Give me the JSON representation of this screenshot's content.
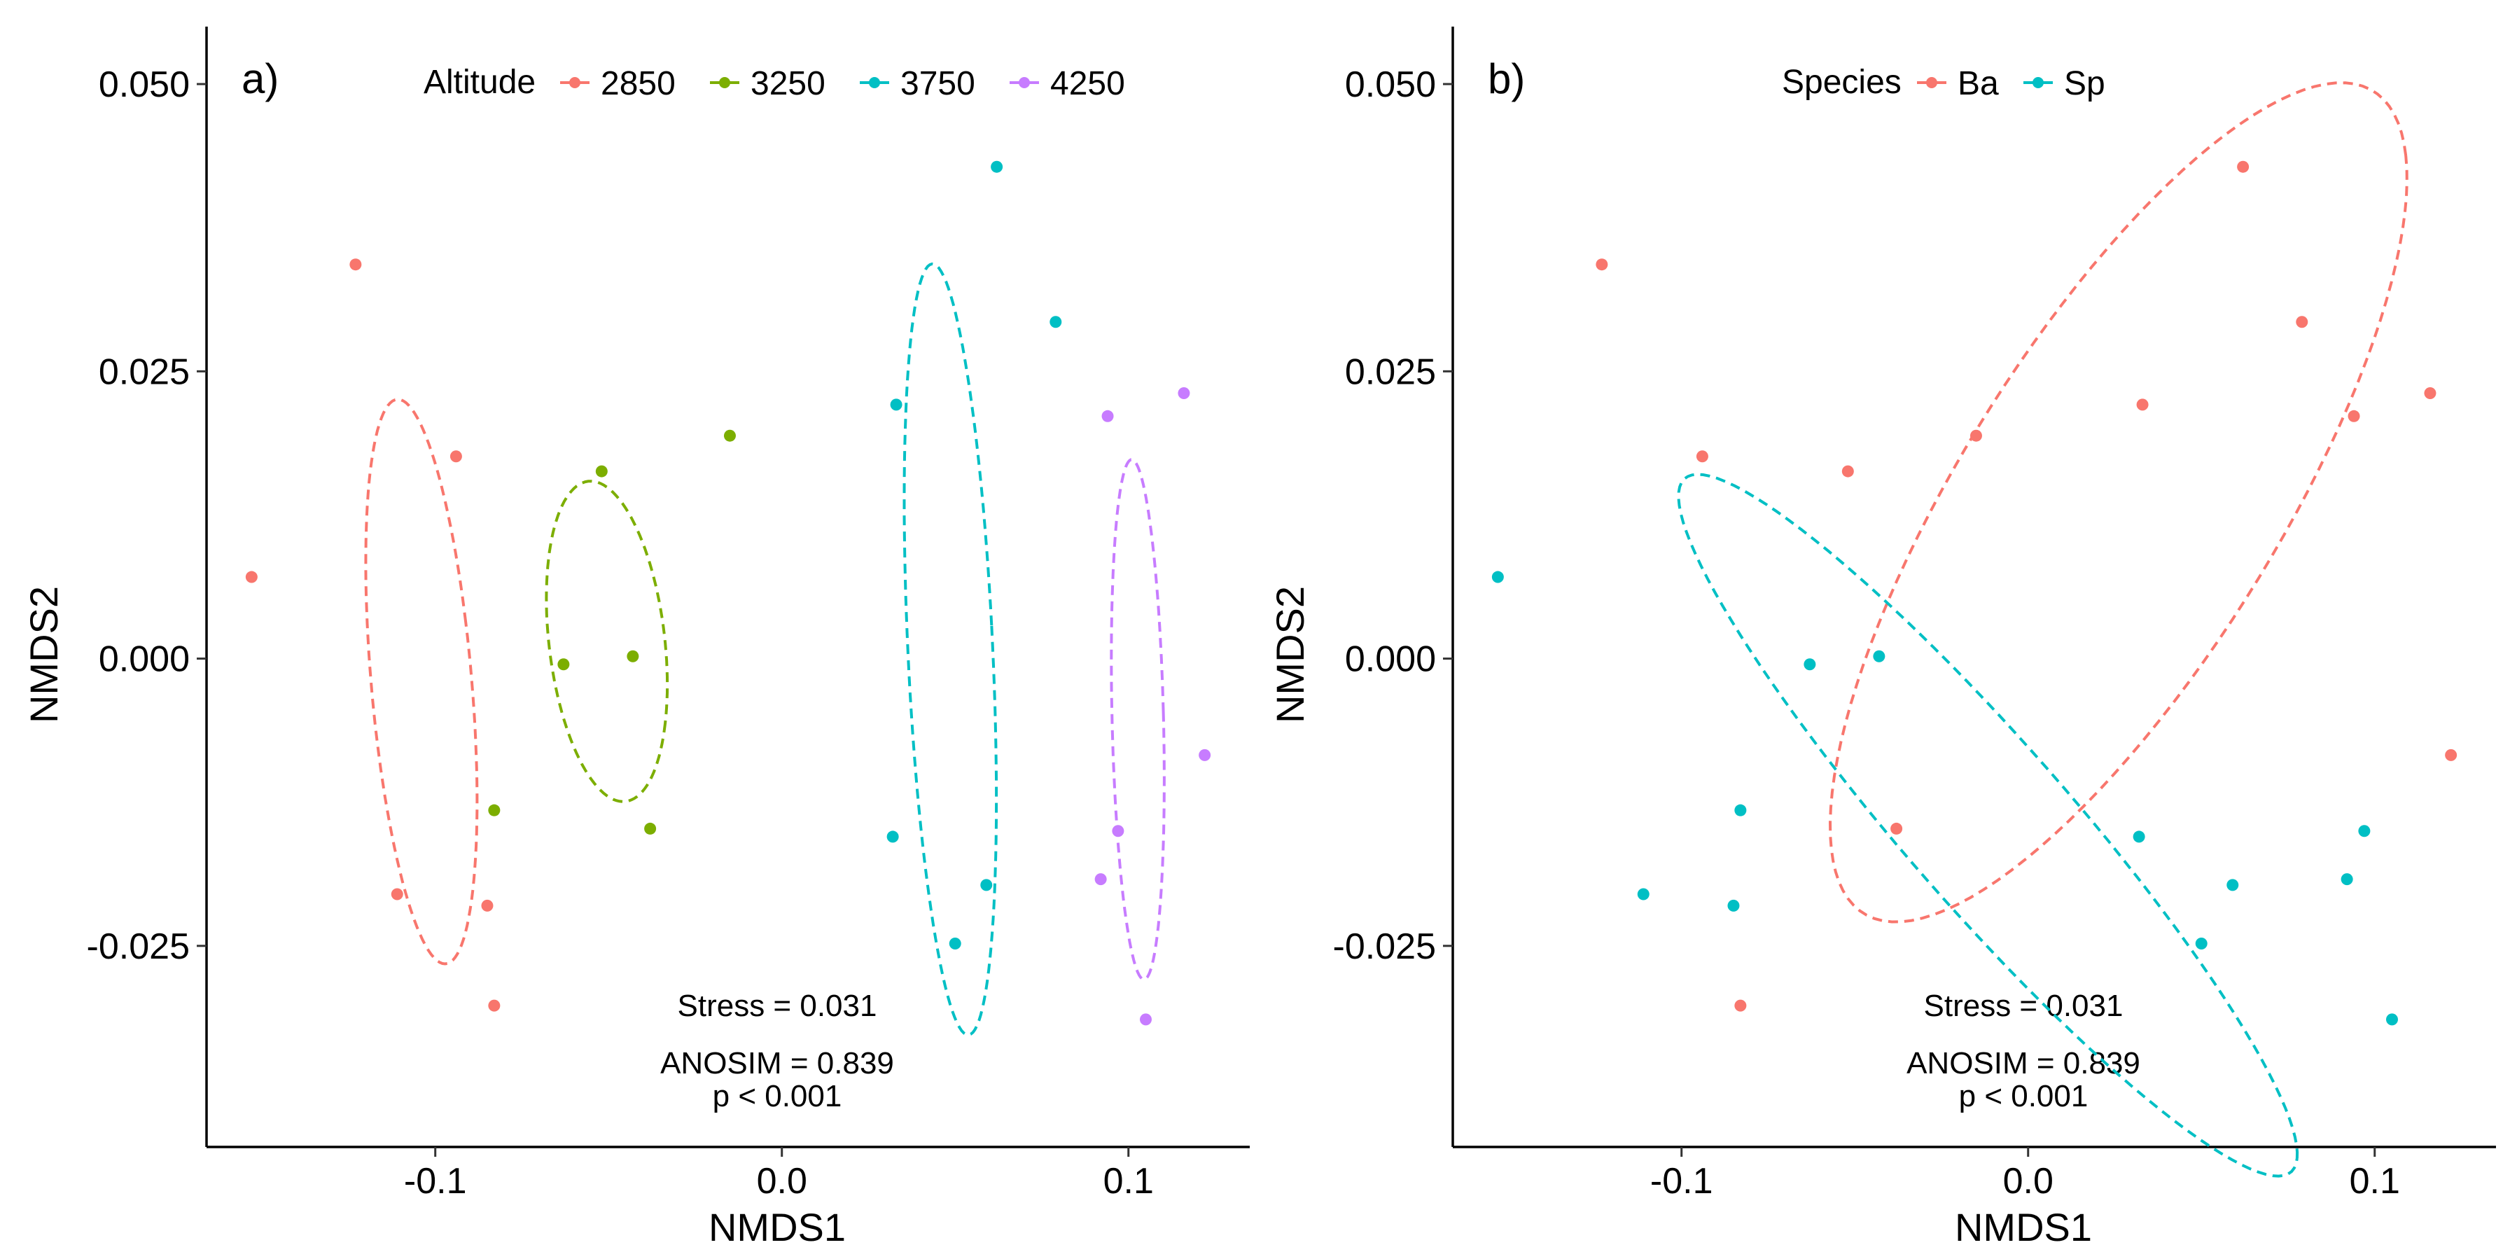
{
  "chart_data": [
    {
      "type": "scatter",
      "panel_label": "a)",
      "xlabel": "NMDS1",
      "ylabel": "NMDS2",
      "xlim": [
        -0.166,
        0.135
      ],
      "ylim": [
        -0.0425,
        0.055
      ],
      "x_ticks": [
        -0.1,
        0.0,
        0.1
      ],
      "x_tick_labels": [
        "-0.1",
        "0.0",
        "0.1"
      ],
      "y_ticks": [
        -0.025,
        0.0,
        0.025,
        0.05
      ],
      "y_tick_labels": [
        "-0.025",
        "0.000",
        "0.025",
        "0.050"
      ],
      "grid": false,
      "legend": {
        "title": "Altitude",
        "placement": "top-center",
        "entries": [
          {
            "label": "2850",
            "color": "#F8766D"
          },
          {
            "label": "3250",
            "color": "#7CAE00"
          },
          {
            "label": "3750",
            "color": "#00BFC4"
          },
          {
            "label": "4250",
            "color": "#C77CFF"
          }
        ]
      },
      "series": [
        {
          "name": "2850",
          "color": "#F8766D",
          "points": [
            [
              -0.153,
              0.0071
            ],
            [
              -0.123,
              0.0343
            ],
            [
              -0.094,
              0.0176
            ],
            [
              -0.111,
              -0.0205
            ],
            [
              -0.085,
              -0.0215
            ],
            [
              -0.083,
              -0.0302
            ]
          ],
          "ellipse": {
            "center": [
              -0.104,
              -0.002
            ],
            "semi_axes": [
              0.0138,
              0.0259
            ],
            "angle_deg": 22
          }
        },
        {
          "name": "3250",
          "color": "#7CAE00",
          "points": [
            [
              -0.052,
              0.0163
            ],
            [
              -0.015,
              0.0194
            ],
            [
              -0.063,
              -0.0005
            ],
            [
              -0.043,
              0.0002
            ],
            [
              -0.083,
              -0.0132
            ],
            [
              -0.038,
              -0.0148
            ]
          ],
          "ellipse": {
            "center": [
              -0.0505,
              0.0015
            ],
            "semi_axes": [
              0.0183,
              0.0128
            ],
            "angle_deg": -25
          }
        },
        {
          "name": "3750",
          "color": "#00BFC4",
          "points": [
            [
              0.062,
              0.0428
            ],
            [
              0.079,
              0.0293
            ],
            [
              0.033,
              0.0221
            ],
            [
              0.032,
              -0.0155
            ],
            [
              0.059,
              -0.0197
            ],
            [
              0.05,
              -0.0248
            ]
          ],
          "ellipse": {
            "center": [
              0.0486,
              0.0008
            ],
            "semi_axes": [
              0.0121,
              0.034
            ],
            "angle_deg": 10
          }
        },
        {
          "name": "4250",
          "color": "#C77CFF",
          "points": [
            [
              0.094,
              0.0211
            ],
            [
              0.116,
              0.0231
            ],
            [
              0.122,
              -0.0084
            ],
            [
              0.097,
              -0.015
            ],
            [
              0.092,
              -0.0192
            ],
            [
              0.105,
              -0.0314
            ]
          ],
          "ellipse": {
            "center": [
              0.1027,
              -0.0053
            ],
            "semi_axes": [
              0.0074,
              0.0227
            ],
            "angle_deg": 5
          }
        }
      ],
      "annotations": [
        "Stress = 0.031",
        "ANOSIM = 0.839",
        "p < 0.001"
      ]
    },
    {
      "type": "scatter",
      "panel_label": "b)",
      "xlabel": "NMDS1",
      "ylabel": "NMDS2",
      "xlim": [
        -0.166,
        0.135
      ],
      "ylim": [
        -0.0425,
        0.055
      ],
      "x_ticks": [
        -0.1,
        0.0,
        0.1
      ],
      "x_tick_labels": [
        "-0.1",
        "0.0",
        "0.1"
      ],
      "y_ticks": [
        -0.025,
        0.0,
        0.025,
        0.05
      ],
      "y_tick_labels": [
        "-0.025",
        "0.000",
        "0.025",
        "0.050"
      ],
      "grid": false,
      "legend": {
        "title": "Species",
        "placement": "top-center",
        "entries": [
          {
            "label": "Ba",
            "color": "#F8766D"
          },
          {
            "label": "Sp",
            "color": "#00BFC4"
          }
        ]
      },
      "series": [
        {
          "name": "Ba",
          "color": "#F8766D",
          "points": [
            [
              0.062,
              0.0428
            ],
            [
              -0.123,
              0.0343
            ],
            [
              0.079,
              0.0293
            ],
            [
              0.116,
              0.0231
            ],
            [
              0.033,
              0.0221
            ],
            [
              0.094,
              0.0211
            ],
            [
              -0.015,
              0.0194
            ],
            [
              -0.094,
              0.0176
            ],
            [
              -0.052,
              0.0163
            ],
            [
              0.122,
              -0.0084
            ],
            [
              -0.038,
              -0.0148
            ],
            [
              -0.083,
              -0.0302
            ]
          ],
          "ellipse": {
            "center": [
              0.0261,
              0.0136
            ],
            "semi_axes": [
              0.0882,
              0.0219
            ],
            "angle_deg": 20
          }
        },
        {
          "name": "Sp",
          "color": "#00BFC4",
          "points": [
            [
              -0.153,
              0.0071
            ],
            [
              -0.063,
              -0.0005
            ],
            [
              -0.043,
              0.0002
            ],
            [
              -0.083,
              -0.0132
            ],
            [
              0.032,
              -0.0155
            ],
            [
              0.097,
              -0.015
            ],
            [
              -0.111,
              -0.0205
            ],
            [
              -0.085,
              -0.0215
            ],
            [
              0.059,
              -0.0197
            ],
            [
              0.092,
              -0.0192
            ],
            [
              0.05,
              -0.0248
            ],
            [
              0.105,
              -0.0314
            ]
          ],
          "ellipse": {
            "center": [
              -0.0116,
              -0.0145
            ],
            "semi_axes": [
              0.0938,
              0.0101
            ],
            "angle_deg": -18
          }
        }
      ],
      "annotations": [
        "Stress = 0.031",
        "ANOSIM = 0.839",
        "p < 0.001"
      ]
    }
  ]
}
